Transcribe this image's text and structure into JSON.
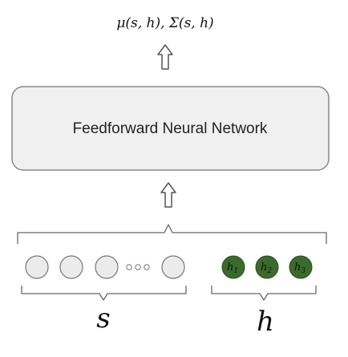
{
  "output_label": "μ(s, h), Σ(s, h)",
  "network_label": "Feedforward Neural Network",
  "state": {
    "brace_label": "s",
    "ellipsis_dot_count": 3
  },
  "history": {
    "brace_label": "h",
    "nodes": [
      {
        "base": "h",
        "sub": "1"
      },
      {
        "base": "h",
        "sub": "2"
      },
      {
        "base": "h",
        "sub": "3"
      }
    ]
  },
  "colors": {
    "network_box_fill": "#f0f0f0",
    "network_box_stroke": "#888888",
    "state_node_fill": "#ebebeb",
    "state_node_stroke": "#777777",
    "history_node_fill": "#3a6b2c",
    "history_node_stroke": "#2a4f20",
    "arrow_stroke": "#555555",
    "brace_stroke": "#666666"
  }
}
